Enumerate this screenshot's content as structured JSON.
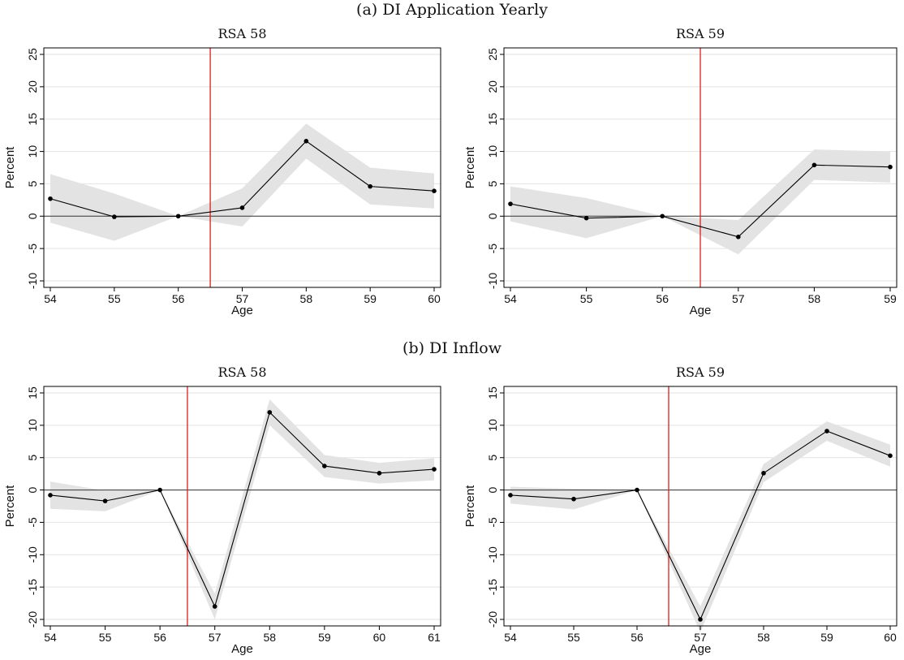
{
  "figure": {
    "sections": [
      {
        "title": "(a) DI Application Yearly"
      },
      {
        "title": "(b) DI Inflow"
      }
    ]
  },
  "chart_data": [
    {
      "type": "line",
      "section": "(a) DI Application Yearly",
      "title": "RSA 58",
      "xlabel": "Age",
      "ylabel": "Percent",
      "xlim": [
        54,
        60
      ],
      "ylim": [
        -10,
        25
      ],
      "xticks": [
        54,
        55,
        56,
        57,
        58,
        59,
        60
      ],
      "yticks": [
        -10,
        -5,
        0,
        5,
        10,
        15,
        20,
        25
      ],
      "reference_line_x": 56.5,
      "grid": true,
      "zero_line": true,
      "colors": {
        "line": "#000000",
        "band": "#e3e3e3",
        "reference": "#d6221c",
        "grid": "#e2e2e2"
      },
      "series": [
        {
          "x": [
            54,
            55,
            56,
            57,
            58,
            59,
            60
          ],
          "values": [
            2.7,
            -0.1,
            0.0,
            1.3,
            11.6,
            4.6,
            3.9
          ],
          "ci_lower": [
            -1.0,
            -3.8,
            0.0,
            -1.6,
            8.9,
            1.8,
            1.2
          ],
          "ci_upper": [
            6.5,
            3.5,
            0.0,
            4.3,
            14.3,
            7.5,
            6.6
          ]
        }
      ]
    },
    {
      "type": "line",
      "section": "(a) DI Application Yearly",
      "title": "RSA 59",
      "xlabel": "Age",
      "ylabel": "Percent",
      "xlim": [
        54,
        59
      ],
      "ylim": [
        -10,
        25
      ],
      "xticks": [
        54,
        55,
        56,
        57,
        58,
        59
      ],
      "yticks": [
        -10,
        -5,
        0,
        5,
        10,
        15,
        20,
        25
      ],
      "reference_line_x": 56.5,
      "grid": true,
      "zero_line": true,
      "colors": {
        "line": "#000000",
        "band": "#e3e3e3",
        "reference": "#d6221c",
        "grid": "#e2e2e2"
      },
      "series": [
        {
          "x": [
            54,
            55,
            56,
            57,
            58,
            59
          ],
          "values": [
            1.9,
            -0.3,
            0.0,
            -3.2,
            7.9,
            7.6
          ],
          "ci_lower": [
            -0.8,
            -3.4,
            0.0,
            -5.9,
            5.6,
            5.2
          ],
          "ci_upper": [
            4.6,
            2.8,
            0.0,
            -0.6,
            10.3,
            10.0
          ]
        }
      ]
    },
    {
      "type": "line",
      "section": "(b) DI Inflow",
      "title": "RSA 58",
      "xlabel": "Age",
      "ylabel": "Percent",
      "xlim": [
        54,
        61
      ],
      "ylim": [
        -20,
        15
      ],
      "xticks": [
        54,
        55,
        56,
        57,
        58,
        59,
        60,
        61
      ],
      "yticks": [
        -20,
        -15,
        -10,
        -5,
        0,
        5,
        10,
        15
      ],
      "reference_line_x": 56.5,
      "grid": true,
      "zero_line": true,
      "colors": {
        "line": "#000000",
        "band": "#e3e3e3",
        "reference": "#d6221c",
        "grid": "#e2e2e2"
      },
      "series": [
        {
          "x": [
            54,
            55,
            56,
            57,
            58,
            59,
            60,
            61
          ],
          "values": [
            -0.8,
            -1.7,
            0.0,
            -18.0,
            12.0,
            3.7,
            2.6,
            3.2
          ],
          "ci_lower": [
            -2.9,
            -3.3,
            0.0,
            -20.0,
            10.0,
            2.0,
            1.0,
            1.5
          ],
          "ci_upper": [
            1.3,
            -0.1,
            0.0,
            -16.0,
            14.0,
            5.4,
            4.2,
            4.9
          ]
        }
      ]
    },
    {
      "type": "line",
      "section": "(b) DI Inflow",
      "title": "RSA 59",
      "xlabel": "Age",
      "ylabel": "Percent",
      "xlim": [
        54,
        60
      ],
      "ylim": [
        -20,
        15
      ],
      "xticks": [
        54,
        55,
        56,
        57,
        58,
        59,
        60
      ],
      "yticks": [
        -20,
        -15,
        -10,
        -5,
        0,
        5,
        10,
        15
      ],
      "reference_line_x": 56.5,
      "grid": true,
      "zero_line": true,
      "colors": {
        "line": "#000000",
        "band": "#e3e3e3",
        "reference": "#d6221c",
        "grid": "#e2e2e2"
      },
      "series": [
        {
          "x": [
            54,
            55,
            56,
            57,
            58,
            59,
            60
          ],
          "values": [
            -0.8,
            -1.4,
            0.0,
            -20.0,
            2.6,
            9.1,
            5.3
          ],
          "ci_lower": [
            -2.1,
            -3.0,
            0.0,
            -22.0,
            1.2,
            7.6,
            3.6
          ],
          "ci_upper": [
            0.5,
            0.2,
            0.0,
            -18.0,
            4.0,
            10.6,
            7.0
          ]
        }
      ]
    }
  ]
}
